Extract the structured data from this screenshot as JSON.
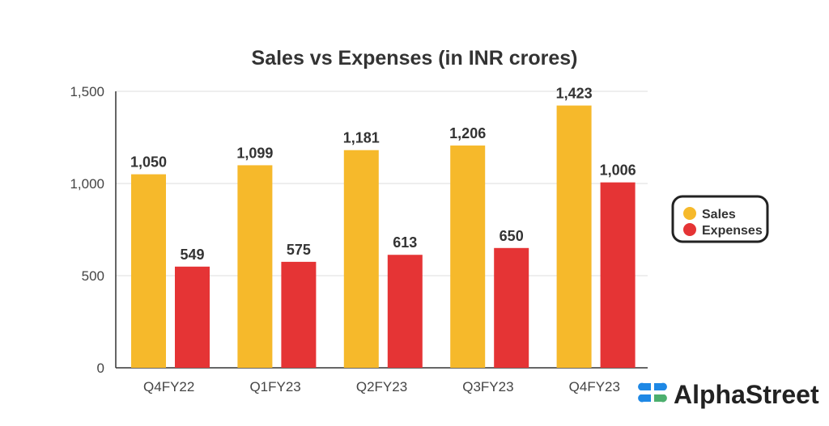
{
  "chart_data": {
    "type": "bar",
    "title": "Sales vs Expenses (in INR crores)",
    "xlabel": "",
    "ylabel": "",
    "categories": [
      "Q4FY22",
      "Q1FY23",
      "Q2FY23",
      "Q3FY23",
      "Q4FY23"
    ],
    "series": [
      {
        "name": "Sales",
        "color": "#F6B92B",
        "values": [
          1050,
          1099,
          1181,
          1206,
          1423
        ],
        "labels": [
          "1,050",
          "1,099",
          "1,181",
          "1,206",
          "1,423"
        ]
      },
      {
        "name": "Expenses",
        "color": "#E53435",
        "values": [
          549,
          575,
          613,
          650,
          1006
        ],
        "labels": [
          "549",
          "575",
          "613",
          "650",
          "1,006"
        ]
      }
    ],
    "ylim": [
      0,
      1500
    ],
    "yticks": [
      0,
      500,
      1000,
      1500
    ],
    "ytick_labels": [
      "0",
      "500",
      "1,000",
      "1,500"
    ],
    "grid": true,
    "legend_position": "right"
  },
  "branding": {
    "logo_text": "AlphaStreet"
  }
}
